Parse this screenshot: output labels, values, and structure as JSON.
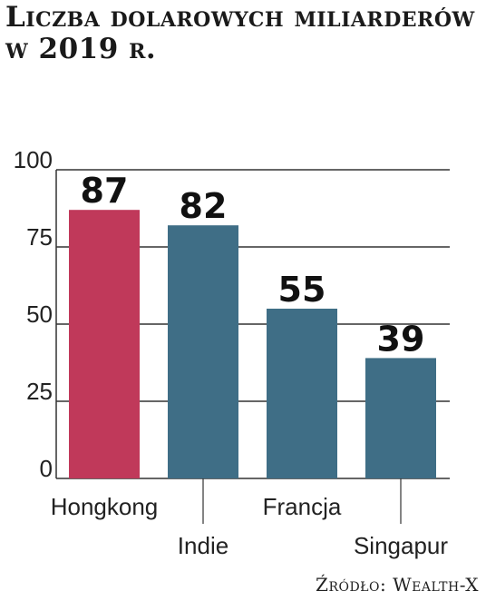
{
  "title": "Liczba dolarowych miliarderów w 2019 r.",
  "source": "Źródło: Wealth-X",
  "colors": {
    "highlight": "#c0395a",
    "default": "#3f6e86",
    "grid": "#333333"
  },
  "chart_data": {
    "type": "bar",
    "title": "Liczba dolarowych miliarderów w 2019 r.",
    "categories": [
      "Hongkong",
      "Indie",
      "Francja",
      "Singapur"
    ],
    "values": [
      87,
      82,
      55,
      39
    ],
    "highlight_index": 0,
    "ylim": [
      0,
      100
    ],
    "yticks": [
      0,
      25,
      50,
      75,
      100
    ],
    "xlabel": "",
    "ylabel": "",
    "grid": true,
    "legend": "none"
  }
}
